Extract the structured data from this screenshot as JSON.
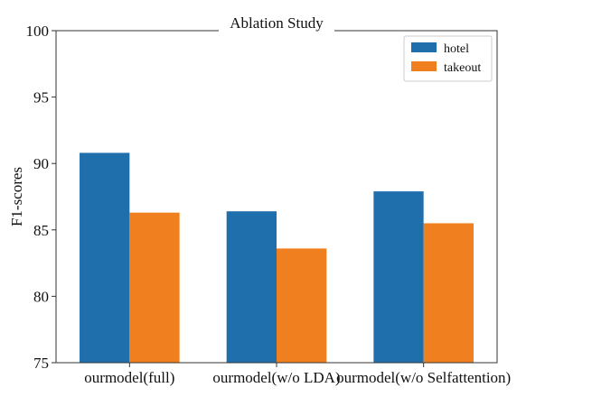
{
  "chart_data": {
    "type": "bar",
    "title": "Ablation Study",
    "xlabel": "",
    "ylabel": "F1-scores",
    "ylim": [
      75,
      100
    ],
    "yticks": [
      75,
      80,
      85,
      90,
      95,
      100
    ],
    "grid": false,
    "legend_position": "top-right",
    "categories": [
      "ourmodel(full)",
      "ourmodel(w/o LDA)",
      "ourmodel(w/o Selfattention)"
    ],
    "series": [
      {
        "name": "hotel",
        "color": "#1f6fad",
        "values": [
          90.8,
          86.4,
          87.9
        ]
      },
      {
        "name": "takeout",
        "color": "#f0801f",
        "values": [
          86.3,
          83.6,
          85.5
        ]
      }
    ]
  }
}
